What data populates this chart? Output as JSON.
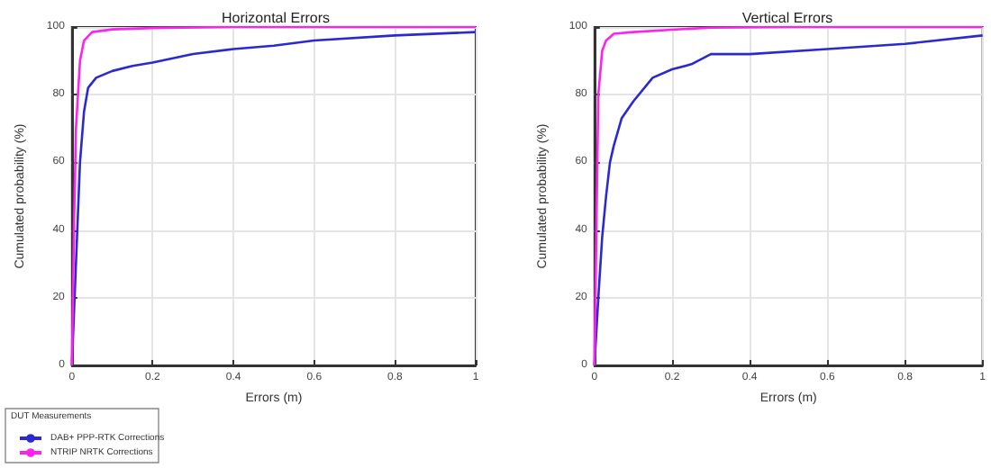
{
  "chart_data": [
    {
      "type": "line",
      "title": "Horizontal Errors",
      "xlabel": "Errors (m)",
      "ylabel": "Cumulated probability (%)",
      "legend_title": "DUT Measurements",
      "legend": "bottom left",
      "grid": true,
      "marker": "none",
      "line_style": "solid",
      "xlim": [
        0,
        1
      ],
      "ylim": [
        0,
        100
      ],
      "xticks": [
        0,
        0.2,
        0.4,
        0.6,
        0.8,
        1
      ],
      "yticks": [
        0,
        20,
        40,
        60,
        80,
        100
      ],
      "series": [
        {
          "name": "DAB+ PPP-RTK Corrections",
          "color": "#2a2ad0",
          "x": [
            0,
            0.01,
            0.02,
            0.03,
            0.04,
            0.06,
            0.1,
            0.15,
            0.2,
            0.3,
            0.4,
            0.5,
            0.6,
            0.8,
            1
          ],
          "values": [
            0,
            30,
            60,
            75,
            82,
            85,
            87,
            88.5,
            89.5,
            92,
            93.5,
            94.5,
            96,
            97.5,
            98.5
          ]
        },
        {
          "name": "NTRIP NRTK Corrections",
          "color": "#ff22ee",
          "x": [
            0,
            0.005,
            0.01,
            0.02,
            0.03,
            0.05,
            0.1,
            0.2,
            0.4,
            1
          ],
          "values": [
            0,
            40,
            70,
            90,
            96,
            98.5,
            99.3,
            99.7,
            100,
            100
          ]
        }
      ]
    },
    {
      "type": "line",
      "title": "Vertical Errors",
      "xlabel": "Errors (m)",
      "ylabel": "Cumulated probability (%)",
      "grid": true,
      "marker": "none",
      "line_style": "solid",
      "xlim": [
        0,
        1
      ],
      "ylim": [
        0,
        100
      ],
      "xticks": [
        0,
        0.2,
        0.4,
        0.6,
        0.8,
        1
      ],
      "yticks": [
        0,
        20,
        40,
        60,
        80,
        100
      ],
      "series": [
        {
          "color": "#2a2ad0",
          "x": [
            0,
            0.01,
            0.02,
            0.03,
            0.04,
            0.05,
            0.07,
            0.1,
            0.15,
            0.2,
            0.25,
            0.3,
            0.4,
            0.6,
            0.8,
            1
          ],
          "values": [
            0,
            20,
            38,
            50,
            60,
            65,
            73,
            78,
            85,
            87.5,
            89,
            92,
            92,
            93.5,
            95,
            97.5
          ]
        },
        {
          "color": "#ff22ee",
          "x": [
            0,
            0.005,
            0.01,
            0.02,
            0.03,
            0.05,
            0.1,
            0.2,
            0.3,
            0.5,
            1
          ],
          "values": [
            0,
            40,
            80,
            93,
            96,
            98,
            98.5,
            99.2,
            99.8,
            100,
            100
          ]
        }
      ]
    }
  ]
}
